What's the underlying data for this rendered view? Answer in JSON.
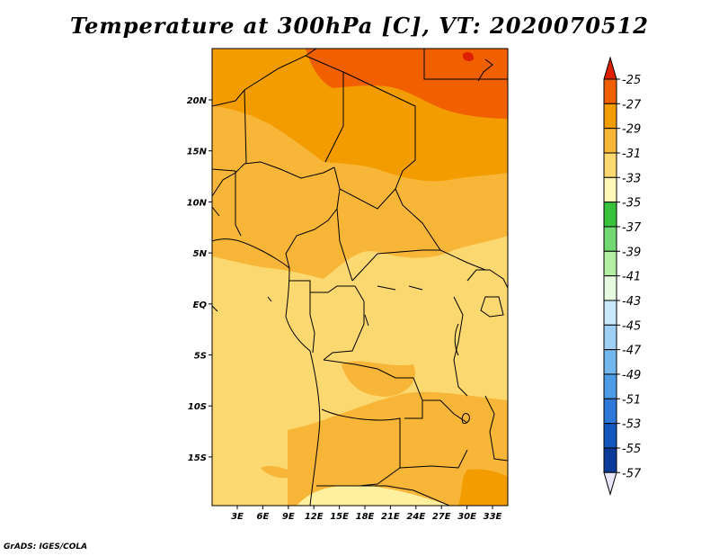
{
  "title": "Temperature at 300hPa [C], VT: 2020070512",
  "credit": "GrADS: IGES/COLA",
  "lat_labels": [
    "20N",
    "15N",
    "10N",
    "5N",
    "EQ",
    "5S",
    "10S",
    "15S"
  ],
  "lon_labels": [
    "3E",
    "6E",
    "9E",
    "12E",
    "15E",
    "18E",
    "21E",
    "24E",
    "27E",
    "30E",
    "33E"
  ],
  "colorbar": {
    "labels": [
      "-25",
      "-27",
      "-29",
      "-31",
      "-33",
      "-35",
      "-37",
      "-39",
      "-41",
      "-43",
      "-45",
      "-47",
      "-49",
      "-51",
      "-53",
      "-55",
      "-57"
    ],
    "colors": [
      "#dd2000",
      "#f06000",
      "#f39c00",
      "#f8b638",
      "#fcd870",
      "#fff8b8",
      "#39c23b",
      "#72d972",
      "#b2efa4",
      "#e6fae2",
      "#c9e8fb",
      "#9ed0f5",
      "#72b8ef",
      "#4f9ce6",
      "#2d78d8",
      "#1257be",
      "#0c3b9a",
      "#0b1366"
    ],
    "top_color": "#dd2000",
    "bottom_color": "#e8e6fa"
  }
}
